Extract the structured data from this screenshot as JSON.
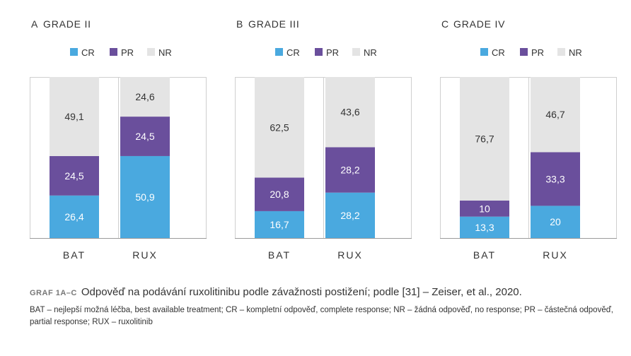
{
  "legend": [
    "CR",
    "PR",
    "NR"
  ],
  "colors": {
    "CR": "#4aa9df",
    "PR": "#6a4f9c",
    "NR": "#e4e4e4"
  },
  "chart_data": [
    {
      "type": "bar",
      "stacked": true,
      "panel": "A",
      "title": "GRADE II",
      "categories": [
        "BAT",
        "RUX"
      ],
      "series": [
        {
          "name": "CR",
          "values": [
            26.4,
            50.9
          ]
        },
        {
          "name": "PR",
          "values": [
            24.5,
            24.5
          ]
        },
        {
          "name": "NR",
          "values": [
            49.1,
            24.6
          ]
        }
      ],
      "ylim": [
        0,
        100
      ],
      "legend_position": "top"
    },
    {
      "type": "bar",
      "stacked": true,
      "panel": "B",
      "title": "GRADE III",
      "categories": [
        "BAT",
        "RUX"
      ],
      "series": [
        {
          "name": "CR",
          "values": [
            16.7,
            28.2
          ]
        },
        {
          "name": "PR",
          "values": [
            20.8,
            28.2
          ]
        },
        {
          "name": "NR",
          "values": [
            62.5,
            43.6
          ]
        }
      ],
      "ylim": [
        0,
        100
      ],
      "legend_position": "top"
    },
    {
      "type": "bar",
      "stacked": true,
      "panel": "C",
      "title": "GRADE IV",
      "categories": [
        "BAT",
        "RUX"
      ],
      "series": [
        {
          "name": "CR",
          "values": [
            13.3,
            20
          ]
        },
        {
          "name": "PR",
          "values": [
            10,
            33.3
          ]
        },
        {
          "name": "NR",
          "values": [
            76.7,
            46.7
          ]
        }
      ],
      "ylim": [
        0,
        100
      ],
      "legend_position": "top"
    }
  ],
  "caption": {
    "tag": "GRAF 1A–C",
    "title": "Odpověď na podávání ruxolitinibu podle závažnosti postižení; podle [31] – Zeiser, et al., 2020.",
    "note": "BAT – nejlepší možná léčba, best available treatment; CR – kompletní odpověď, complete response; NR – žádná odpověď, no response; PR – částečná odpověď, partial response; RUX – ruxolitinib"
  }
}
